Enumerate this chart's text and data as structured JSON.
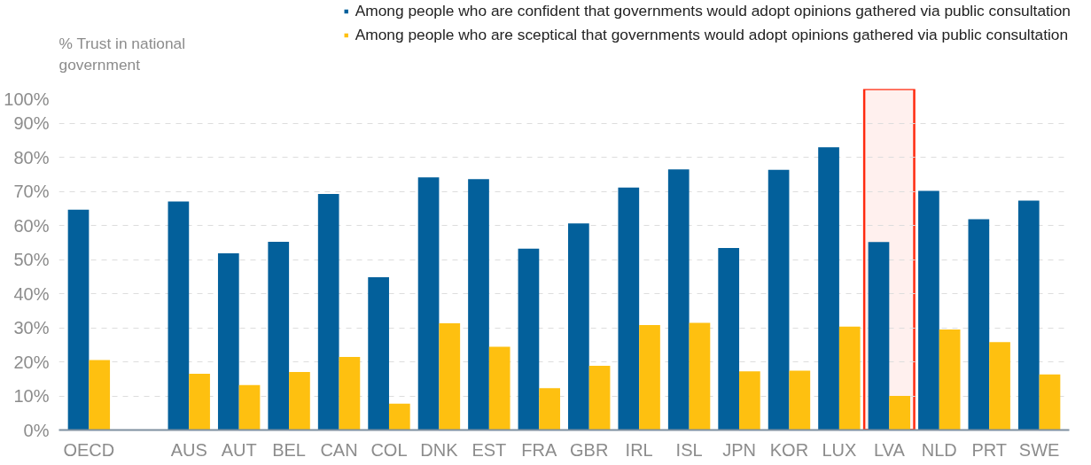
{
  "chart_data": {
    "type": "bar",
    "ylabel": "% Trust in national\ngovernment",
    "categories": [
      "OECD",
      null,
      "AUS",
      "AUT",
      "BEL",
      "CAN",
      "COL",
      "DNK",
      "EST",
      "FRA",
      "GBR",
      "IRL",
      "ISL",
      "JPN",
      "KOR",
      "LUX",
      "LVA",
      "NLD",
      "PRT",
      "SWE"
    ],
    "series": [
      {
        "name": "Among people who are confident that governments would adopt opinions gathered via public consultation",
        "color": "#03609b",
        "values": [
          64.6,
          null,
          67.0,
          51.8,
          55.2,
          69.2,
          44.8,
          74.1,
          73.6,
          53.2,
          60.6,
          71.1,
          76.4,
          53.4,
          76.3,
          82.9,
          55.1,
          70.1,
          61.8,
          67.3
        ]
      },
      {
        "name": "Among people who are sceptical that governments would adopt opinions gathered via public consultation",
        "color": "#fec010",
        "values": [
          20.5,
          null,
          16.5,
          13.2,
          17.0,
          21.4,
          7.7,
          31.3,
          24.4,
          12.3,
          18.8,
          30.8,
          31.4,
          17.2,
          17.4,
          30.3,
          10.0,
          29.5,
          25.8,
          16.3
        ]
      }
    ],
    "ylim": [
      0,
      100
    ],
    "yticks": [
      {
        "value": 0,
        "label": "0%"
      },
      {
        "value": 10,
        "label": "10%"
      },
      {
        "value": 20,
        "label": "20%"
      },
      {
        "value": 30,
        "label": "30%"
      },
      {
        "value": 40,
        "label": "40%"
      },
      {
        "value": 50,
        "label": "50%"
      },
      {
        "value": 60,
        "label": "60%"
      },
      {
        "value": 70,
        "label": "70%"
      },
      {
        "value": 80,
        "label": "80%"
      },
      {
        "value": 90,
        "label": "90%"
      },
      {
        "value": 100,
        "label": "100%"
      }
    ],
    "bands": [
      {
        "axis": "x",
        "from": "LVA",
        "to": "LVA",
        "color": "#ff2a0f"
      }
    ],
    "grid": "y",
    "legend": "top"
  }
}
